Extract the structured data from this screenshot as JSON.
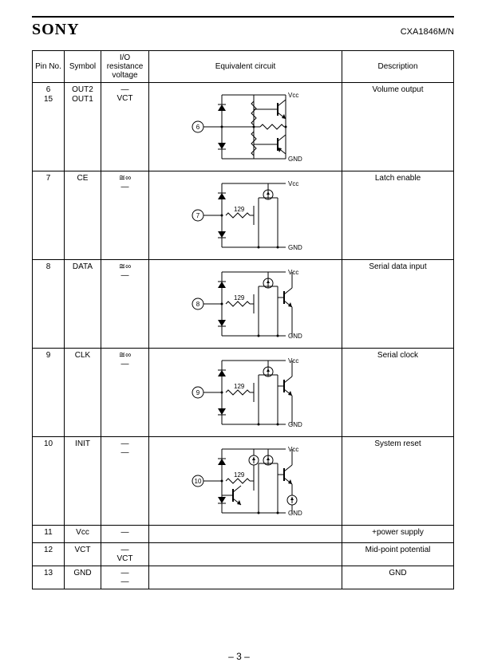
{
  "header": {
    "brand": "SONY",
    "part": "CXA1846M/N"
  },
  "table": {
    "headers": {
      "pin": "Pin No.",
      "symbol": "Symbol",
      "io": "I/O resistance voltage",
      "eq": "Equivalent circuit",
      "desc": "Description"
    },
    "rows": [
      {
        "pin": [
          "6",
          "15"
        ],
        "symbol": [
          "OUT2",
          "OUT1"
        ],
        "io": [
          "—",
          "VCT"
        ],
        "desc": "Volume output",
        "circuit": {
          "type": "out",
          "pin_label": "6",
          "vcc": "Vcc",
          "gnd": "GND"
        }
      },
      {
        "pin": [
          "7"
        ],
        "symbol": [
          "CE"
        ],
        "io": [
          "≅∞",
          "—"
        ],
        "desc": "Latch enable",
        "circuit": {
          "type": "in_a",
          "pin_label": "7",
          "res": "129",
          "vcc": "Vcc",
          "gnd": "GND"
        }
      },
      {
        "pin": [
          "8"
        ],
        "symbol": [
          "DATA"
        ],
        "io": [
          "≅∞",
          "—"
        ],
        "desc": "Serial data input",
        "circuit": {
          "type": "in_b",
          "pin_label": "8",
          "res": "129",
          "vcc": "Vcc",
          "gnd": "GND"
        }
      },
      {
        "pin": [
          "9"
        ],
        "symbol": [
          "CLK"
        ],
        "io": [
          "≅∞",
          "—"
        ],
        "desc": "Serial clock",
        "circuit": {
          "type": "in_b",
          "pin_label": "9",
          "res": "129",
          "vcc": "Vcc",
          "gnd": "GND"
        }
      },
      {
        "pin": [
          "10"
        ],
        "symbol": [
          "INIT"
        ],
        "io": [
          "—",
          "—"
        ],
        "desc": "System reset",
        "circuit": {
          "type": "init",
          "pin_label": "10",
          "res": "129",
          "vcc": "Vcc",
          "gnd": "GND"
        }
      },
      {
        "pin": [
          "11"
        ],
        "symbol": [
          "Vcc"
        ],
        "io": [
          "—"
        ],
        "desc": "+power supply",
        "circuit": null
      },
      {
        "pin": [
          "12"
        ],
        "symbol": [
          "VCT"
        ],
        "io": [
          "—",
          "VCT"
        ],
        "desc": "Mid-point potential",
        "circuit": null
      },
      {
        "pin": [
          "13"
        ],
        "symbol": [
          "GND"
        ],
        "io": [
          "—",
          "—"
        ],
        "desc": "GND",
        "circuit": null
      }
    ]
  },
  "footer": "– 3 –"
}
